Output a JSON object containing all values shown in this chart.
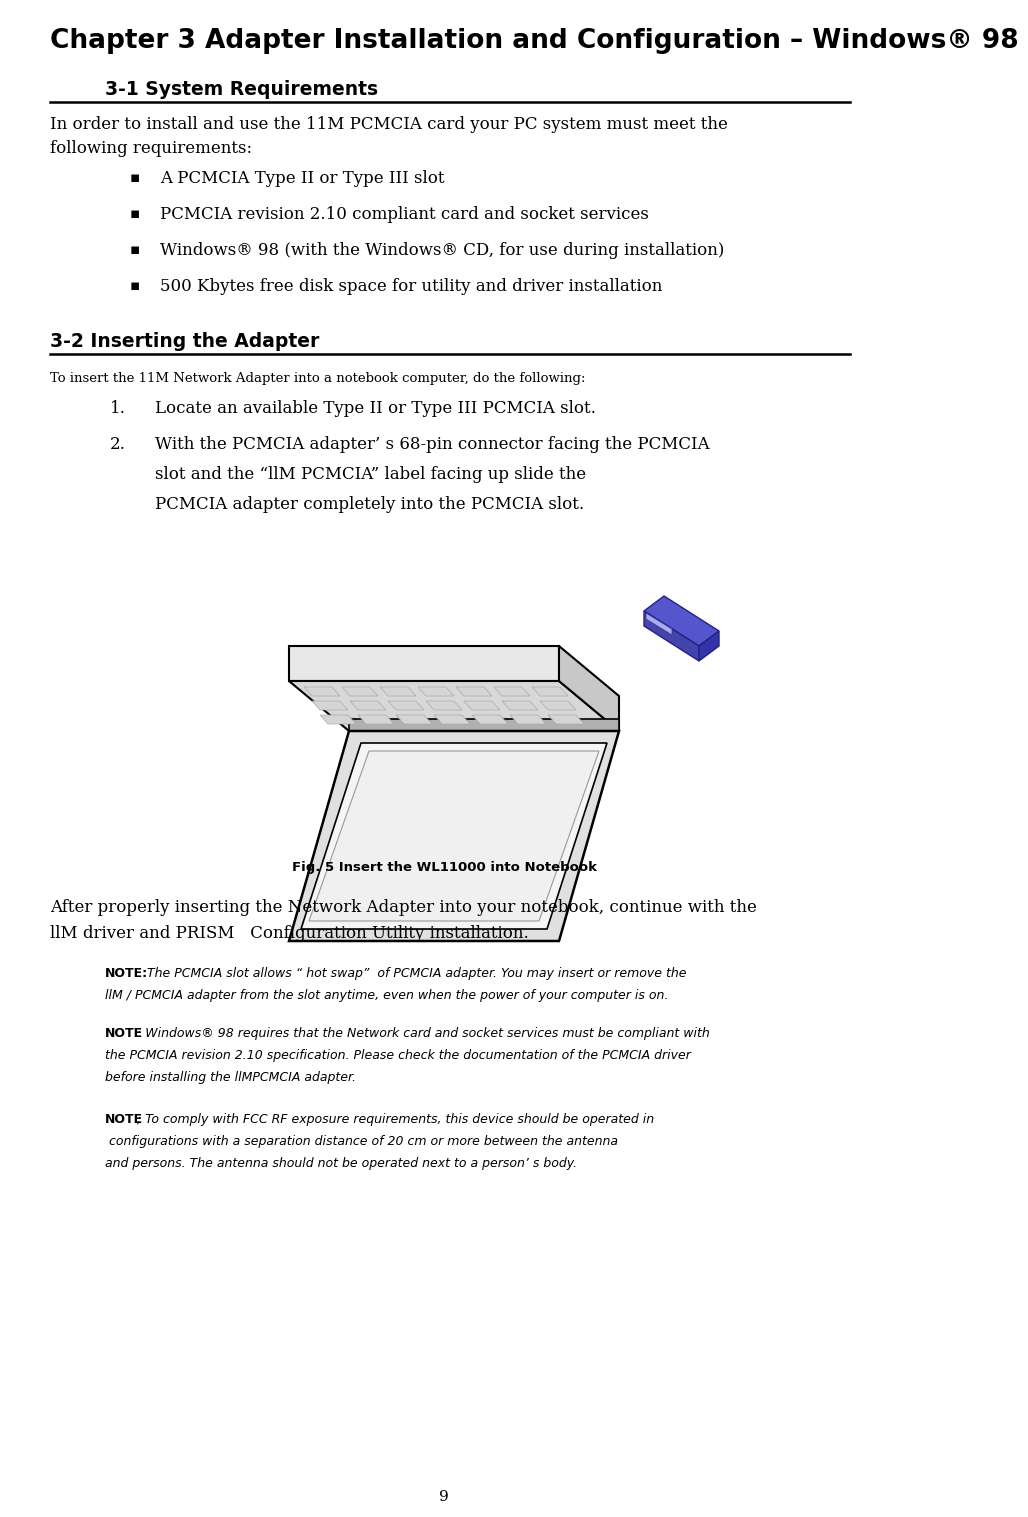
{
  "page_title": "Chapter 3 Adapter Installation and Configuration – Windows® 98",
  "section1_heading_display": "3-1 System Requirements",
  "section1_intro_line1": "In order to install and use the 11M PCMCIA card your PC system must meet the",
  "section1_intro_line2": "following requirements:",
  "section1_bullets": [
    "A PCMCIA Type II or Type III slot",
    "PCMCIA revision 2.10 compliant card and socket services",
    "Windows® 98 (with the Windows® CD, for use during installation)",
    "500 Kbytes free disk space for utility and driver installation"
  ],
  "section2_heading": "3-2 Inserting the Adapter",
  "section2_intro": "To insert the 11M Network Adapter into a notebook computer, do the following:",
  "section2_step1": "Locate an available Type II or Type III PCMCIA slot.",
  "section2_step2a": "With the PCMCIA adapter’ s 68-pin connector facing the PCMCIA",
  "section2_step2b": "slot and the “llM PCMCIA” label facing up slide the",
  "section2_step2c": "PCMCIA adapter completely into the PCMCIA slot.",
  "fig_caption": "Fig. 5 Insert the WL11000 into Notebook",
  "after_fig1": "After properly inserting the Network Adapter into your notebook, continue with the",
  "after_fig2": "llM driver and PRISM   Configuration Utility installation.",
  "note1_bold": "NOTE:",
  "note1_line1": " The PCMCIA slot allows “ hot swap”  of PCMCIA adapter. You may insert or remove the",
  "note1_line2": "llM / PCMCIA adapter from the slot anytime, even when the power of your computer is on.",
  "note2_bold": "NOTE",
  "note2_line1": ": Windows® 98 requires that the Network card and socket services must be compliant with",
  "note2_line2": "the PCMCIA revision 2.10 specification. Please check the documentation of the PCMCIA driver",
  "note2_line3": "before installing the llMPCMCIA adapter.",
  "note3_bold": "NOTE",
  "note3_line1": "; To comply with FCC RF exposure requirements, this device should be operated in",
  "note3_line2": " configurations with a separation distance of 20 cm or more between the antenna",
  "note3_line3": "and persons. The antenna should not be operated next to a person’ s body.",
  "page_number": "9",
  "bg_color": "#ffffff",
  "text_color": "#000000"
}
